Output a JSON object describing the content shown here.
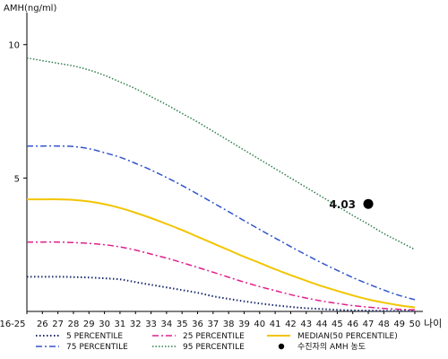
{
  "chart_data": {
    "type": "line",
    "title": "",
    "ylabel": "AMH(ng/ml)",
    "xlabel": "나이",
    "ylim": [
      0,
      11
    ],
    "yticks": [
      5,
      10
    ],
    "categories": [
      "16-25",
      "26",
      "27",
      "28",
      "29",
      "30",
      "31",
      "32",
      "33",
      "34",
      "35",
      "36",
      "37",
      "38",
      "39",
      "40",
      "41",
      "42",
      "43",
      "44",
      "45",
      "46",
      "47",
      "48",
      "49",
      "50"
    ],
    "series": [
      {
        "name": "5 PERCENTILE",
        "key": "p5",
        "color": "#1a2a6c",
        "dash": "1.5,2.5",
        "width": 2,
        "values": [
          1.3,
          1.3,
          1.3,
          1.29,
          1.27,
          1.24,
          1.2,
          1.1,
          1.0,
          0.9,
          0.8,
          0.7,
          0.57,
          0.47,
          0.38,
          0.3,
          0.23,
          0.17,
          0.12,
          0.09,
          0.06,
          0.04,
          0.03,
          0.02,
          0.02,
          0.02
        ]
      },
      {
        "name": "25 PERCENTILE",
        "key": "p25",
        "color": "#e0208c",
        "dash": "7,3,2,3",
        "width": 1.5,
        "values": [
          2.6,
          2.6,
          2.6,
          2.58,
          2.55,
          2.5,
          2.42,
          2.3,
          2.15,
          2.0,
          1.83,
          1.65,
          1.47,
          1.28,
          1.1,
          0.93,
          0.78,
          0.63,
          0.5,
          0.39,
          0.3,
          0.22,
          0.16,
          0.11,
          0.08,
          0.06
        ]
      },
      {
        "name": "MEDIAN(50 PERCENTILE)",
        "key": "p50",
        "color": "#f2c500",
        "dash": "",
        "width": 2,
        "values": [
          4.2,
          4.2,
          4.2,
          4.18,
          4.12,
          4.02,
          3.88,
          3.7,
          3.5,
          3.28,
          3.05,
          2.8,
          2.55,
          2.3,
          2.05,
          1.82,
          1.58,
          1.36,
          1.15,
          0.95,
          0.77,
          0.6,
          0.45,
          0.33,
          0.23,
          0.15
        ]
      },
      {
        "name": "75 PERCENTILE",
        "key": "p75",
        "color": "#3355cc",
        "dash": "7,3,2,3",
        "width": 1.5,
        "values": [
          6.2,
          6.2,
          6.2,
          6.18,
          6.1,
          5.95,
          5.78,
          5.55,
          5.3,
          5.02,
          4.72,
          4.4,
          4.07,
          3.74,
          3.4,
          3.07,
          2.75,
          2.43,
          2.12,
          1.82,
          1.54,
          1.27,
          1.03,
          0.8,
          0.6,
          0.44
        ]
      },
      {
        "name": "95 PERCENTILE",
        "key": "p95",
        "color": "#2e7d4a",
        "dash": "1.5,2",
        "width": 1.5,
        "values": [
          9.5,
          9.4,
          9.3,
          9.2,
          9.05,
          8.85,
          8.6,
          8.35,
          8.05,
          7.75,
          7.42,
          7.1,
          6.75,
          6.4,
          6.05,
          5.7,
          5.35,
          5.0,
          4.65,
          4.3,
          3.95,
          3.6,
          3.27,
          2.92,
          2.62,
          2.32
        ]
      }
    ],
    "patient_point": {
      "name": "수진자의 AMH 농도",
      "x": "47",
      "y": 4.03,
      "label": "4.03",
      "color": "#000000"
    },
    "legend": {
      "position": "bottom",
      "items": [
        {
          "label": "5 PERCENTILE",
          "series": "p5"
        },
        {
          "label": "25 PERCENTILE",
          "series": "p25"
        },
        {
          "label": "MEDIAN(50 PERCENTILE)",
          "series": "p50"
        },
        {
          "label": "75 PERCENTILE",
          "series": "p75"
        },
        {
          "label": "95 PERCENTILE",
          "series": "p95"
        },
        {
          "label": "수진자의 AMH 농도",
          "series": "point"
        }
      ]
    }
  }
}
